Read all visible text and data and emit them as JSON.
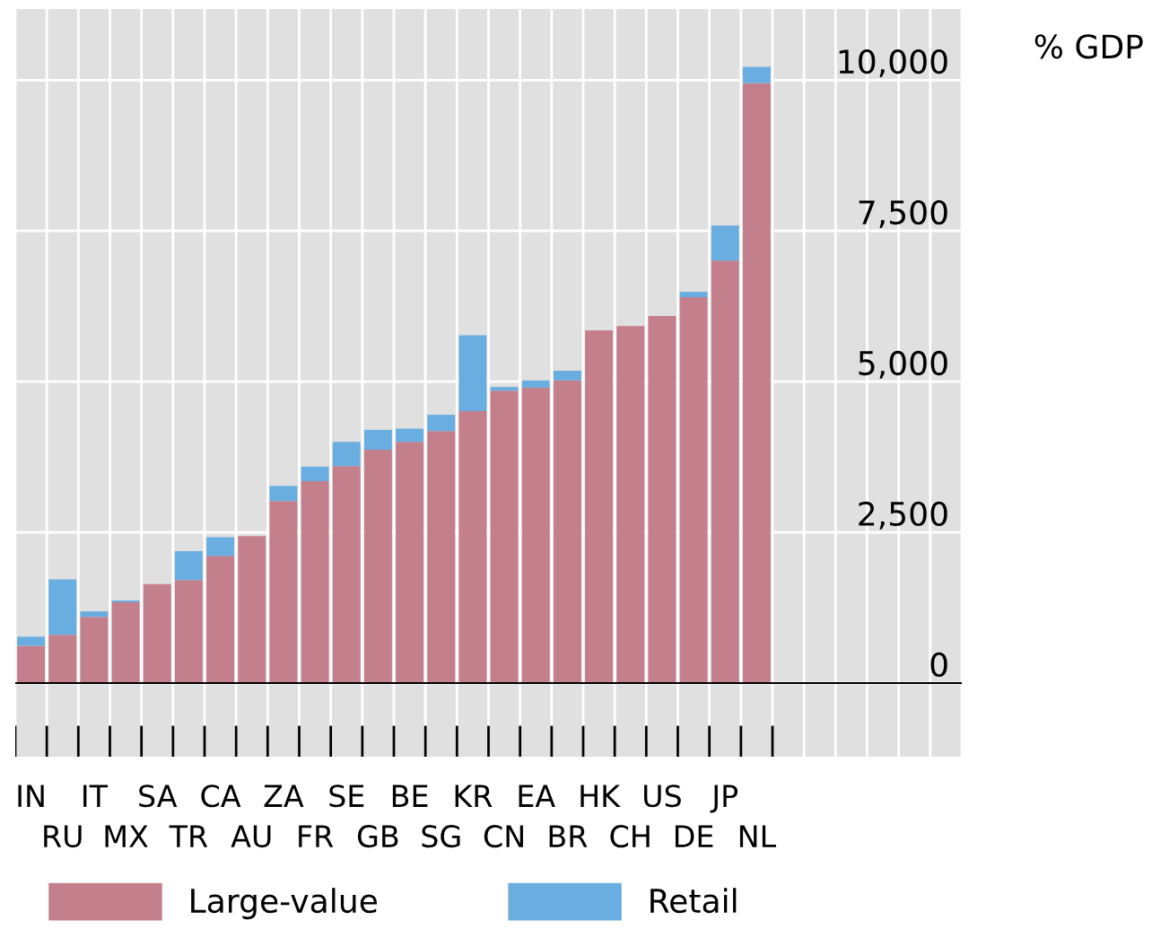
{
  "chart_data": {
    "type": "bar",
    "stacked": true,
    "ylabel": "% GDP",
    "categories": [
      "IN",
      "RU",
      "IT",
      "MX",
      "SA",
      "TR",
      "CA",
      "AU",
      "ZA",
      "FR",
      "SE",
      "GB",
      "BE",
      "SG",
      "KR",
      "CN",
      "EA",
      "BR",
      "HK",
      "CH",
      "US",
      "DE",
      "JP",
      "NL"
    ],
    "series": [
      {
        "name": "Large-value",
        "color": "#c47f8c",
        "values": [
          620,
          800,
          1100,
          1340,
          1640,
          1710,
          2110,
          2440,
          3020,
          3350,
          3600,
          3870,
          4000,
          4180,
          4510,
          4850,
          4900,
          5020,
          5850,
          5920,
          6090,
          6400,
          7010,
          9950
        ]
      },
      {
        "name": "Retail",
        "color": "#6aade0",
        "values": [
          150,
          920,
          90,
          30,
          0,
          480,
          310,
          0,
          250,
          240,
          400,
          330,
          220,
          270,
          1260,
          60,
          120,
          160,
          0,
          0,
          0,
          90,
          580,
          270
        ]
      }
    ],
    "ylim": [
      -1220,
      11180
    ],
    "yticks": [
      0,
      {
        "value": 2500,
        "label": "2,500"
      },
      {
        "value": 5000,
        "label": "5,000"
      },
      {
        "value": 7500,
        "label": "7,500"
      },
      {
        "value": 10000,
        "label": "10,000"
      }
    ],
    "grid": true,
    "legend": "bottom"
  }
}
